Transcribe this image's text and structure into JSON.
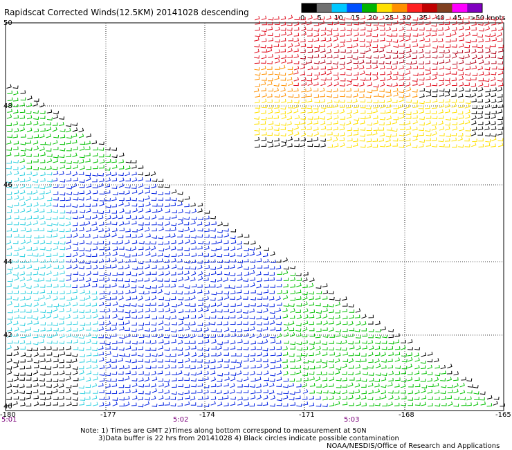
{
  "title": "Rapidscat Corrected Winds(12.5KM) 20141028 descending",
  "legend": {
    "labels": [
      "0",
      "5",
      "10",
      "15",
      "20",
      "25",
      "30",
      "35",
      "40",
      "45",
      ">50 knots"
    ],
    "colors": [
      "#000000",
      "#707070",
      "#00c8ff",
      "#0050ff",
      "#00b400",
      "#ffe000",
      "#ff9000",
      "#ff2020",
      "#c00000",
      "#804020",
      "#ff00ff",
      "#8000c0"
    ]
  },
  "y_axis": {
    "labels": [
      "50",
      "48",
      "46",
      "44",
      "42",
      "40"
    ]
  },
  "x_axis": {
    "labels": [
      "-180",
      "-177",
      "-174",
      "-171",
      "-168",
      "-165"
    ]
  },
  "times": [
    "5:01",
    "5:02",
    "5:03"
  ],
  "notes": {
    "line1": "Note: 1) Times are GMT 2)Times along bottom correspond to measurement at 50N",
    "line2": "3)Data buffer is 22 hrs from 20141028 4) Black circles indicate possible contamination",
    "credit": "NOAA/NESDIS/Office of Research and Applications"
  },
  "wind_colors": {
    "calm": "#000000",
    "light": "#30d0e0",
    "moderate": "#0020e0",
    "fresh": "#00c000",
    "strong": "#ffe000",
    "gale": "#ff9000",
    "storm": "#e01020",
    "dark": "#b00018"
  }
}
